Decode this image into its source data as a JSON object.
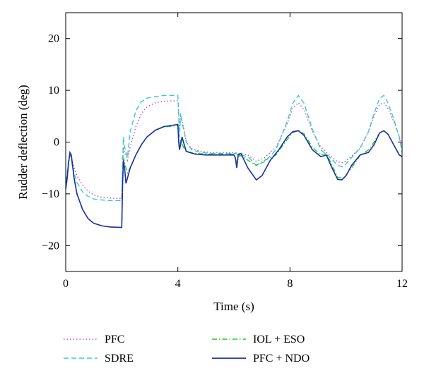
{
  "chart_data": {
    "type": "line",
    "title": "",
    "xlabel": "Time (s)",
    "ylabel": "Rudder deflection (deg)",
    "xlim": [
      0,
      12
    ],
    "ylim": [
      -25,
      25
    ],
    "x_ticks": [
      0,
      4,
      8,
      12
    ],
    "y_ticks": [
      -20,
      -10,
      0,
      10,
      20
    ],
    "x_tick_labels": [
      "0",
      "4",
      "8",
      "12"
    ],
    "y_tick_labels": [
      "−20",
      "−10",
      "0",
      "10",
      "20"
    ],
    "grid": false,
    "legend_placement": "below",
    "series": [
      {
        "name": "PFC",
        "color": "#cc44cc",
        "style": "dotted",
        "points": [
          [
            0,
            -9
          ],
          [
            0.05,
            -7.5
          ],
          [
            0.1,
            -4
          ],
          [
            0.15,
            -2.5
          ],
          [
            0.2,
            -3
          ],
          [
            0.3,
            -5
          ],
          [
            0.4,
            -6.5
          ],
          [
            0.6,
            -8.3
          ],
          [
            0.8,
            -9.5
          ],
          [
            1.0,
            -10.2
          ],
          [
            1.3,
            -10.7
          ],
          [
            1.6,
            -10.8
          ],
          [
            2.0,
            -10.9
          ],
          [
            2.03,
            -5
          ],
          [
            2.06,
            -1
          ],
          [
            2.1,
            -2
          ],
          [
            2.2,
            -3.5
          ],
          [
            2.3,
            -1
          ],
          [
            2.5,
            3
          ],
          [
            2.7,
            5.5
          ],
          [
            2.9,
            6.8
          ],
          [
            3.2,
            7.6
          ],
          [
            3.5,
            7.9
          ],
          [
            4.0,
            8.0
          ],
          [
            4.03,
            6
          ],
          [
            4.06,
            2
          ],
          [
            4.1,
            5
          ],
          [
            4.2,
            3
          ],
          [
            4.3,
            0
          ],
          [
            4.5,
            -1.3
          ],
          [
            4.8,
            -1.8
          ],
          [
            5.2,
            -2
          ],
          [
            5.6,
            -2
          ],
          [
            6.0,
            -2
          ],
          [
            6.5,
            -2.5
          ],
          [
            6.8,
            -3.7
          ],
          [
            7.1,
            -3
          ],
          [
            7.5,
            -1
          ],
          [
            7.9,
            3.5
          ],
          [
            8.1,
            6.5
          ],
          [
            8.3,
            7.6
          ],
          [
            8.5,
            6.3
          ],
          [
            8.8,
            2
          ],
          [
            9.1,
            -1
          ],
          [
            9.4,
            -2.5
          ],
          [
            9.7,
            -3.8
          ],
          [
            9.9,
            -4
          ],
          [
            10.2,
            -2.7
          ],
          [
            10.5,
            -1.2
          ],
          [
            10.8,
            2
          ],
          [
            11.0,
            5
          ],
          [
            11.2,
            7.3
          ],
          [
            11.35,
            7.6
          ],
          [
            11.5,
            6.5
          ],
          [
            11.7,
            4
          ],
          [
            11.9,
            1
          ],
          [
            12.0,
            -1.5
          ]
        ]
      },
      {
        "name": "SDRE",
        "color": "#33cccc",
        "style": "dashed",
        "points": [
          [
            0,
            -9
          ],
          [
            0.05,
            -6
          ],
          [
            0.1,
            -3.5
          ],
          [
            0.15,
            -2.5
          ],
          [
            0.2,
            -3
          ],
          [
            0.3,
            -6
          ],
          [
            0.4,
            -7.8
          ],
          [
            0.6,
            -9.6
          ],
          [
            0.8,
            -10.5
          ],
          [
            1.0,
            -11
          ],
          [
            1.3,
            -11.2
          ],
          [
            1.6,
            -11.3
          ],
          [
            2.0,
            -11.3
          ],
          [
            2.03,
            -4
          ],
          [
            2.06,
            1
          ],
          [
            2.1,
            -1
          ],
          [
            2.2,
            -3
          ],
          [
            2.3,
            2
          ],
          [
            2.5,
            6
          ],
          [
            2.7,
            7.8
          ],
          [
            2.9,
            8.5
          ],
          [
            3.2,
            8.8
          ],
          [
            3.5,
            9
          ],
          [
            4.0,
            9
          ],
          [
            4.03,
            5
          ],
          [
            4.06,
            1
          ],
          [
            4.1,
            5.6
          ],
          [
            4.2,
            2.5
          ],
          [
            4.3,
            0
          ],
          [
            4.5,
            -1.5
          ],
          [
            4.8,
            -2
          ],
          [
            5.2,
            -2.2
          ],
          [
            5.6,
            -2.2
          ],
          [
            6.0,
            -2.2
          ],
          [
            6.5,
            -2.8
          ],
          [
            6.8,
            -4.5
          ],
          [
            7.1,
            -3.8
          ],
          [
            7.5,
            -1.5
          ],
          [
            7.9,
            4
          ],
          [
            8.1,
            7.5
          ],
          [
            8.3,
            9
          ],
          [
            8.5,
            7.5
          ],
          [
            8.8,
            2.5
          ],
          [
            9.1,
            -1.5
          ],
          [
            9.4,
            -2.8
          ],
          [
            9.7,
            -4.5
          ],
          [
            9.9,
            -4.8
          ],
          [
            10.2,
            -3
          ],
          [
            10.5,
            -1.2
          ],
          [
            10.8,
            2
          ],
          [
            11.0,
            5.5
          ],
          [
            11.2,
            8.5
          ],
          [
            11.35,
            9
          ],
          [
            11.5,
            7.5
          ],
          [
            11.7,
            4.5
          ],
          [
            11.9,
            1
          ],
          [
            12.0,
            -2
          ]
        ]
      },
      {
        "name": "IOL + ESO",
        "color": "#22cc22",
        "style": "dashdot",
        "points": [
          [
            0,
            -9
          ],
          [
            0.05,
            -7
          ],
          [
            0.1,
            -4
          ],
          [
            0.15,
            -2.5
          ],
          [
            0.2,
            -3
          ],
          [
            0.3,
            -7
          ],
          [
            0.4,
            -10
          ],
          [
            0.6,
            -13
          ],
          [
            0.8,
            -14.8
          ],
          [
            1.0,
            -15.7
          ],
          [
            1.3,
            -16.2
          ],
          [
            1.6,
            -16.4
          ],
          [
            2.0,
            -16.5
          ],
          [
            2.03,
            -8
          ],
          [
            2.06,
            -3
          ],
          [
            2.1,
            -4
          ],
          [
            2.2,
            -6
          ],
          [
            2.3,
            -5
          ],
          [
            2.5,
            -2.5
          ],
          [
            2.7,
            -0.5
          ],
          [
            2.9,
            1
          ],
          [
            3.2,
            2.3
          ],
          [
            3.5,
            2.9
          ],
          [
            4.0,
            3.2
          ],
          [
            4.03,
            0
          ],
          [
            4.06,
            -1.5
          ],
          [
            4.1,
            0.5
          ],
          [
            4.2,
            -1
          ],
          [
            4.3,
            -1.8
          ],
          [
            4.6,
            -2.2
          ],
          [
            5.0,
            -2.3
          ],
          [
            6.0,
            -2.3
          ],
          [
            6.1,
            -4
          ],
          [
            6.2,
            -2.5
          ],
          [
            6.5,
            -3.5
          ],
          [
            6.8,
            -4.5
          ],
          [
            7.1,
            -3.5
          ],
          [
            7.5,
            -2.5
          ],
          [
            7.9,
            0.5
          ],
          [
            8.1,
            1.8
          ],
          [
            8.3,
            2.3
          ],
          [
            8.5,
            1.6
          ],
          [
            8.8,
            -1
          ],
          [
            9.1,
            -2.5
          ],
          [
            9.3,
            -2.2
          ],
          [
            9.5,
            -4.5
          ],
          [
            9.7,
            -6.8
          ],
          [
            9.9,
            -7
          ],
          [
            10.2,
            -5
          ],
          [
            10.5,
            -2.6
          ],
          [
            10.8,
            -1.5
          ],
          [
            11.0,
            0
          ],
          [
            11.2,
            1.8
          ],
          [
            11.35,
            2.2
          ],
          [
            11.5,
            1.5
          ],
          [
            11.7,
            -0.5
          ],
          [
            11.9,
            -2.5
          ],
          [
            12.0,
            -2.5
          ]
        ]
      },
      {
        "name": "PFC + NDO",
        "color": "#1a2fa6",
        "style": "solid",
        "points": [
          [
            0,
            -9
          ],
          [
            0.05,
            -7
          ],
          [
            0.1,
            -4
          ],
          [
            0.15,
            -2
          ],
          [
            0.2,
            -2.5
          ],
          [
            0.3,
            -7
          ],
          [
            0.4,
            -10
          ],
          [
            0.6,
            -13
          ],
          [
            0.8,
            -14.8
          ],
          [
            1.0,
            -15.7
          ],
          [
            1.3,
            -16.2
          ],
          [
            1.6,
            -16.4
          ],
          [
            2.0,
            -16.5
          ],
          [
            2.03,
            -8
          ],
          [
            2.06,
            -3.5
          ],
          [
            2.1,
            -5
          ],
          [
            2.15,
            -8
          ],
          [
            2.2,
            -7
          ],
          [
            2.3,
            -5
          ],
          [
            2.5,
            -2.5
          ],
          [
            2.7,
            -0.5
          ],
          [
            2.9,
            1
          ],
          [
            3.2,
            2.3
          ],
          [
            3.5,
            3
          ],
          [
            4.0,
            3.4
          ],
          [
            4.03,
            0
          ],
          [
            4.06,
            -1.5
          ],
          [
            4.1,
            -0.5
          ],
          [
            4.15,
            1
          ],
          [
            4.2,
            0
          ],
          [
            4.3,
            -1.8
          ],
          [
            4.6,
            -2.3
          ],
          [
            5.0,
            -2.5
          ],
          [
            6.0,
            -2.5
          ],
          [
            6.05,
            -3
          ],
          [
            6.1,
            -5
          ],
          [
            6.15,
            -2.5
          ],
          [
            6.25,
            -2.2
          ],
          [
            6.5,
            -5
          ],
          [
            6.8,
            -7.3
          ],
          [
            7.0,
            -6.5
          ],
          [
            7.3,
            -3.5
          ],
          [
            7.6,
            -1.5
          ],
          [
            7.9,
            1
          ],
          [
            8.1,
            2
          ],
          [
            8.3,
            2.2
          ],
          [
            8.5,
            1.3
          ],
          [
            8.8,
            -1.5
          ],
          [
            9.1,
            -2.8
          ],
          [
            9.3,
            -2.5
          ],
          [
            9.5,
            -5
          ],
          [
            9.7,
            -7.2
          ],
          [
            9.85,
            -7.3
          ],
          [
            10.0,
            -6.5
          ],
          [
            10.2,
            -4.5
          ],
          [
            10.5,
            -2.5
          ],
          [
            10.8,
            -2
          ],
          [
            11.0,
            -0.5
          ],
          [
            11.2,
            1.8
          ],
          [
            11.35,
            2.2
          ],
          [
            11.5,
            1.5
          ],
          [
            11.7,
            -0.5
          ],
          [
            11.9,
            -2.5
          ],
          [
            12.0,
            -2.8
          ]
        ]
      }
    ]
  }
}
